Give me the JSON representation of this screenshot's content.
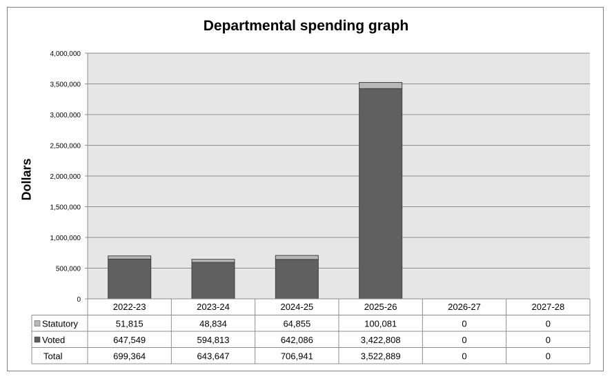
{
  "chart_data": {
    "type": "bar",
    "stacked": true,
    "title": "Departmental spending graph",
    "ylabel": "Dollars",
    "xlabel": "",
    "ylim": [
      0,
      4000000
    ],
    "yticks": [
      0,
      500000,
      1000000,
      1500000,
      2000000,
      2500000,
      3000000,
      3500000,
      4000000
    ],
    "ytick_labels": [
      "0",
      "500,000",
      "1,000,000",
      "1,500,000",
      "2,000,000",
      "2,500,000",
      "3,000,000",
      "3,500,000",
      "4,000,000"
    ],
    "grid": true,
    "categories": [
      "2022-23",
      "2023-24",
      "2024-25",
      "2025-26",
      "2026-27",
      "2027-28"
    ],
    "series": [
      {
        "name": "Voted",
        "values": [
          647549,
          594813,
          642086,
          3422808,
          0,
          0
        ],
        "color": "#606060",
        "labels": [
          "647,549",
          "594,813",
          "642,086",
          "3,422,808",
          "0",
          "0"
        ]
      },
      {
        "name": "Statutory",
        "values": [
          51815,
          48834,
          64855,
          100081,
          0,
          0
        ],
        "color": "#b7b7b7",
        "labels": [
          "51,815",
          "48,834",
          "64,855",
          "100,081",
          "0",
          "0"
        ]
      }
    ],
    "table_rows": [
      {
        "label": "Statutory",
        "swatch": "#b7b7b7",
        "cells": [
          "51,815",
          "48,834",
          "64,855",
          "100,081",
          "0",
          "0"
        ]
      },
      {
        "label": "Voted",
        "swatch": "#606060",
        "cells": [
          "647,549",
          "594,813",
          "642,086",
          "3,422,808",
          "0",
          "0"
        ]
      },
      {
        "label": "Total",
        "swatch": "",
        "cells": [
          "699,364",
          "643,647",
          "706,941",
          "3,522,889",
          "0",
          "0"
        ]
      }
    ],
    "plot_background": "#e6e6e6"
  }
}
